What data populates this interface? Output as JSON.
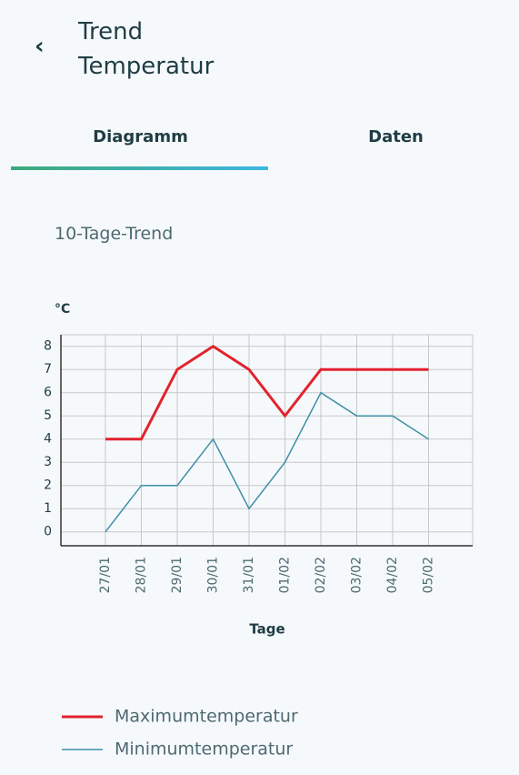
{
  "header": {
    "title": "Trend Temperatur"
  },
  "tabs": [
    "Diagramm",
    "Daten"
  ],
  "subtitle": "10-Tage-Trend",
  "chart_data": {
    "type": "line",
    "ylabel": "°C",
    "xlabel": "Tage",
    "categories": [
      "27/01",
      "28/01",
      "29/01",
      "30/01",
      "31/01",
      "01/02",
      "02/02",
      "03/02",
      "04/02",
      "05/02"
    ],
    "series": [
      {
        "name": "Maximumtemperatur",
        "color": "#e2232d",
        "values": [
          4,
          4,
          7,
          8,
          7,
          5,
          7,
          7,
          7,
          7
        ]
      },
      {
        "name": "Minimumtemperatur",
        "color": "#3f8fa8",
        "values": [
          0,
          2,
          2,
          4,
          1,
          3,
          6,
          5,
          5,
          4
        ]
      }
    ],
    "ylim": [
      -0.6,
      8.5
    ],
    "yticks": [
      0,
      1,
      2,
      3,
      4,
      5,
      6,
      7,
      8
    ],
    "grid": true
  }
}
